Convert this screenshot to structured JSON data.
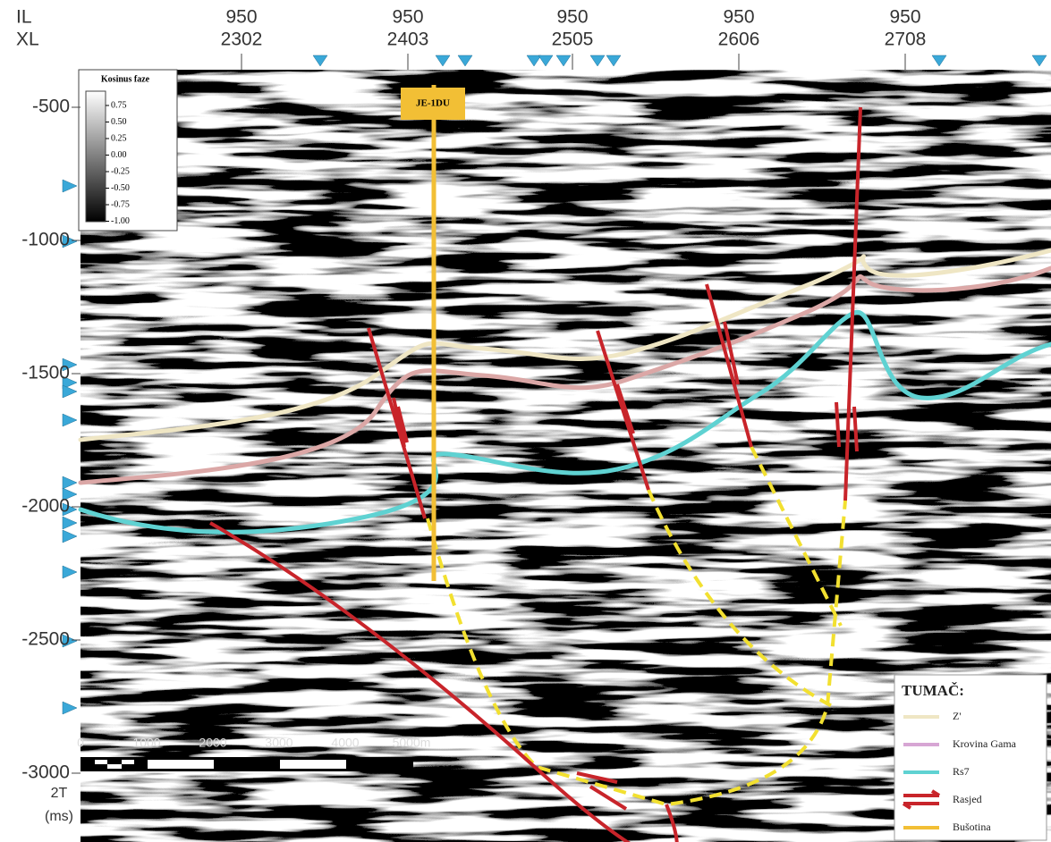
{
  "axes": {
    "row_labels": [
      "IL",
      "XL"
    ],
    "top_ticks": [
      {
        "il": "950",
        "xl": "2302"
      },
      {
        "il": "950",
        "xl": "2403"
      },
      {
        "il": "950",
        "xl": "2505"
      },
      {
        "il": "950",
        "xl": "2606"
      },
      {
        "il": "950",
        "xl": "2708"
      }
    ],
    "y_ticks": [
      "-500",
      "-1000",
      "-1500",
      "-2000",
      "-2500",
      "-3000"
    ],
    "y_unit": [
      "2T",
      "(ms)"
    ]
  },
  "colorbar": {
    "title": "Kosinus faze",
    "labels": [
      "0.75",
      "0.50",
      "0.25",
      "0.00",
      "-0.25",
      "-0.50",
      "-0.75",
      "-1.00"
    ]
  },
  "well": {
    "label": "JE-1DU"
  },
  "scale_bar": {
    "labels": [
      "0",
      "1000",
      "2000",
      "3000",
      "4000",
      "5000m"
    ]
  },
  "legend": {
    "title": "TUMAČ:",
    "items": [
      "Z'",
      "Krovina Gama",
      "Rs7",
      "Rasjed",
      "Bušotina"
    ]
  }
}
